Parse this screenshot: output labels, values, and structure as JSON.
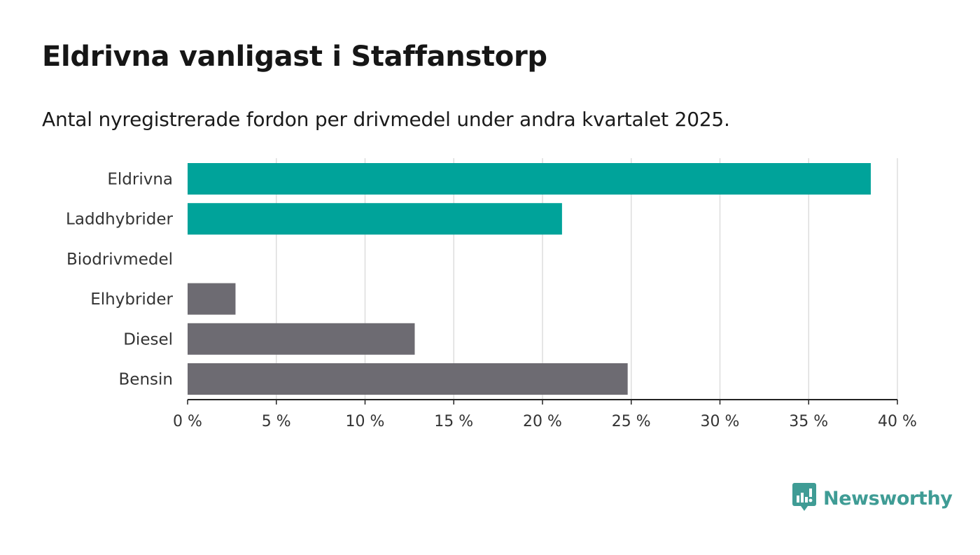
{
  "title": "Eldrivna vanligast i Staffanstorp",
  "subtitle": "Antal nyregistrerade fordon per drivmedel under andra kvartalet 2025.",
  "brand": {
    "name": "Newsworthy",
    "icon": "newsworthy-logo-icon",
    "color": "#3f9c95"
  },
  "chart_data": {
    "type": "bar",
    "orientation": "horizontal",
    "categories": [
      "Eldrivna",
      "Laddhybrider",
      "Biodrivmedel",
      "Elhybrider",
      "Diesel",
      "Bensin"
    ],
    "values": [
      38.5,
      21.1,
      0,
      2.7,
      12.8,
      24.8
    ],
    "colors": [
      "#00a39a",
      "#00a39a",
      "#00a39a",
      "#6d6b72",
      "#6d6b72",
      "#6d6b72"
    ],
    "xlim": [
      0,
      40
    ],
    "xticks": [
      0,
      5,
      10,
      15,
      20,
      25,
      30,
      35,
      40
    ],
    "xtick_labels": [
      "0 %",
      "5 %",
      "10 %",
      "15 %",
      "20 %",
      "25 %",
      "30 %",
      "35 %",
      "40 %"
    ],
    "grid": "vertical",
    "xlabel": "",
    "ylabel": ""
  }
}
